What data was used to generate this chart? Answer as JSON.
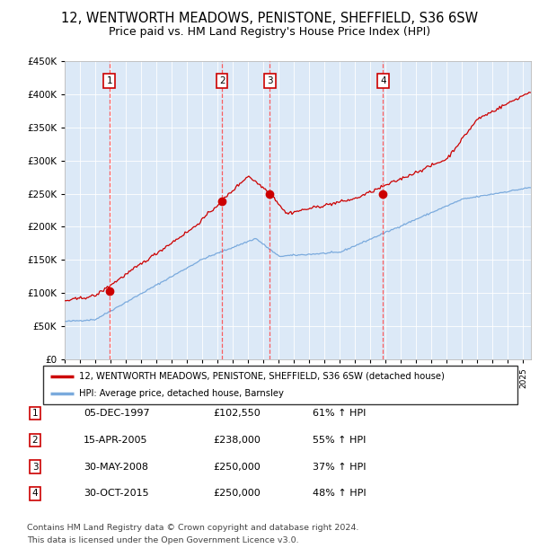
{
  "title": "12, WENTWORTH MEADOWS, PENISTONE, SHEFFIELD, S36 6SW",
  "subtitle": "Price paid vs. HM Land Registry's House Price Index (HPI)",
  "legend_label_red": "12, WENTWORTH MEADOWS, PENISTONE, SHEFFIELD, S36 6SW (detached house)",
  "legend_label_blue": "HPI: Average price, detached house, Barnsley",
  "footnote1": "Contains HM Land Registry data © Crown copyright and database right 2024.",
  "footnote2": "This data is licensed under the Open Government Licence v3.0.",
  "sales": [
    {
      "num": 1,
      "date_str": "05-DEC-1997",
      "date_dec": 1997.92,
      "price": 102550,
      "pct": "61% ↑ HPI"
    },
    {
      "num": 2,
      "date_str": "15-APR-2005",
      "date_dec": 2005.29,
      "price": 238000,
      "pct": "55% ↑ HPI"
    },
    {
      "num": 3,
      "date_str": "30-MAY-2008",
      "date_dec": 2008.42,
      "price": 250000,
      "pct": "37% ↑ HPI"
    },
    {
      "num": 4,
      "date_str": "30-OCT-2015",
      "date_dec": 2015.83,
      "price": 250000,
      "pct": "48% ↑ HPI"
    }
  ],
  "ylim": [
    0,
    450000
  ],
  "xlim_start": 1995.0,
  "xlim_end": 2025.5,
  "bg_color": "#dce9f7",
  "red_line_color": "#cc0000",
  "blue_line_color": "#7aaadd",
  "marker_color": "#cc0000",
  "vline_color": "#ff4444",
  "box_color": "#cc0000",
  "title_fontsize": 10.5,
  "subtitle_fontsize": 9
}
